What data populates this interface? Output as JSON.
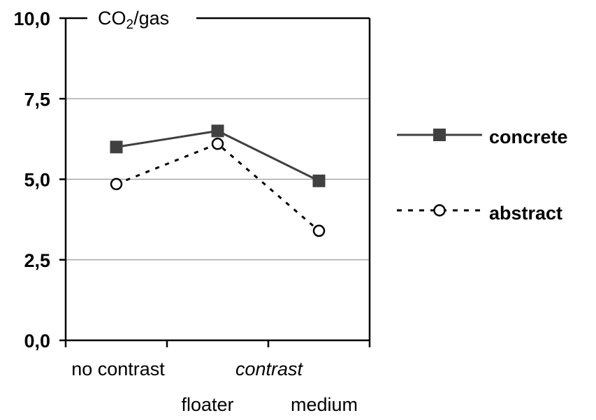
{
  "chart_data": {
    "type": "line",
    "title_main": "CO",
    "title_sub": "2",
    "title_rest": "/gas",
    "ylim": [
      0,
      10
    ],
    "yticks": [
      "0,0",
      "2,5",
      "5,0",
      "7,5",
      "10,0"
    ],
    "ytick_values": [
      0,
      2.5,
      5,
      7.5,
      10
    ],
    "categories": [
      "no contrast",
      "floater",
      "medium"
    ],
    "group_label": "contrast",
    "grid": "horizontal",
    "legend_position": "right",
    "series": [
      {
        "name": "concrete",
        "values": [
          6.0,
          6.5,
          4.95
        ],
        "marker": "filled-square",
        "line": "solid",
        "color": "#404040"
      },
      {
        "name": "abstract",
        "values": [
          4.85,
          6.1,
          3.4
        ],
        "marker": "open-circle",
        "line": "dotted",
        "color": "#000000"
      }
    ]
  }
}
